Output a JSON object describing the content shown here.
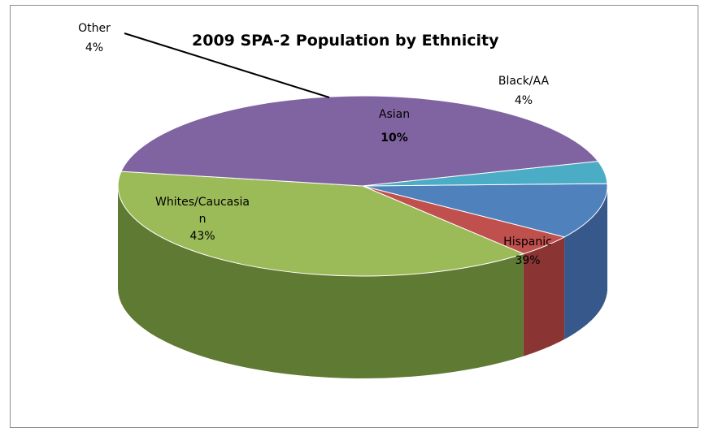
{
  "chart_data": {
    "type": "pie",
    "title": "2009 SPA-2 Population by Ethnicity",
    "slices": [
      {
        "name": "Asian",
        "value": 10,
        "label": "10%",
        "color": "#4f81bd",
        "side": "#36588a"
      },
      {
        "name": "Black/AA",
        "value": 4,
        "label": "4%",
        "color": "#c0504d",
        "side": "#8a3533"
      },
      {
        "name": "Hispanic",
        "value": 39,
        "label": "39%",
        "color": "#9bbb59",
        "side": "#5f7a33"
      },
      {
        "name": "Whites/Caucasia\nn",
        "value": 43,
        "label": "43%",
        "color": "#8064a2",
        "side": "#5a4575"
      },
      {
        "name": "Other",
        "value": 4,
        "label": "4%",
        "color": "#4bacc6",
        "side": "#2f7f95"
      }
    ],
    "legend": "none",
    "style": "3d-pie"
  }
}
